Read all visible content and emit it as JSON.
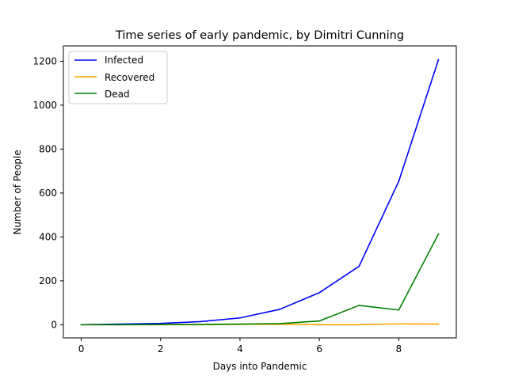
{
  "chart_data": {
    "type": "line",
    "title": "Time series of early pandemic, by Dimitri Cunning",
    "xlabel": "Days into Pandemic",
    "ylabel": "Number of People",
    "xlim": [
      -0.45,
      9.45
    ],
    "ylim": [
      -60,
      1270
    ],
    "xticks": [
      0,
      2,
      4,
      6,
      8
    ],
    "yticks": [
      0,
      200,
      400,
      600,
      800,
      1000,
      1200
    ],
    "x": [
      0,
      1,
      2,
      3,
      4,
      5,
      6,
      7,
      8,
      9
    ],
    "series": [
      {
        "name": "Infected",
        "color": "#0000ff",
        "values": [
          0,
          3,
          6,
          14,
          31,
          70,
          146,
          266,
          653,
          1207
        ]
      },
      {
        "name": "Recovered",
        "color": "#ffa500",
        "values": [
          0,
          0,
          0,
          0,
          2,
          2,
          0,
          0,
          4,
          3
        ]
      },
      {
        "name": "Dead",
        "color": "#008000",
        "values": [
          0,
          0,
          1,
          1,
          3,
          5,
          17,
          88,
          67,
          413
        ]
      }
    ],
    "legend": "top-left",
    "grid": false
  }
}
